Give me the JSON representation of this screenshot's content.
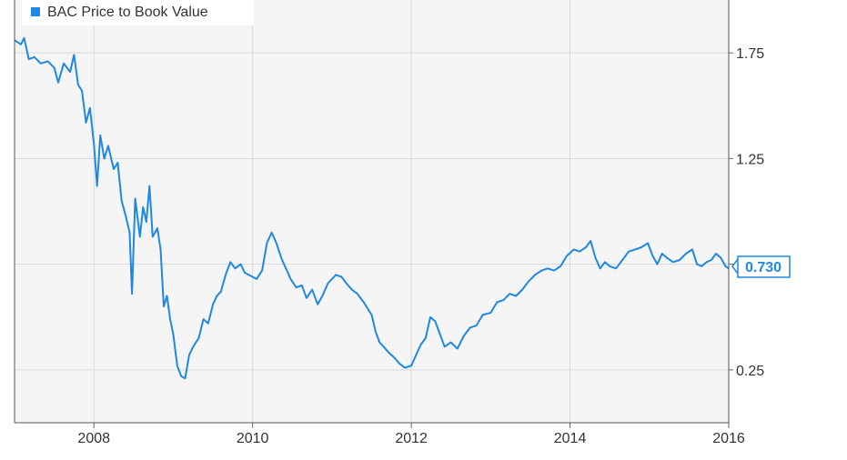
{
  "chart_data": {
    "type": "line",
    "title": "",
    "xlabel": "",
    "ylabel": "",
    "xlim": [
      2007.0,
      2016.0
    ],
    "ylim": [
      0.0,
      2.0
    ],
    "x_ticks": [
      2008,
      2010,
      2012,
      2014,
      2016
    ],
    "x_tick_labels": [
      "2008",
      "2010",
      "2012",
      "2014",
      "2016"
    ],
    "y_ticks": [
      0.25,
      0.75,
      1.25,
      1.75
    ],
    "y_tick_labels": [
      "0.25",
      "0.75",
      "1.25",
      "1.75"
    ],
    "grid": true,
    "legend": "top-left",
    "last_value_label": "0.730",
    "series": [
      {
        "name": "BAC Price to Book Value",
        "color": "#1e88e5",
        "points": [
          [
            2007.0,
            1.81
          ],
          [
            2007.08,
            1.79
          ],
          [
            2007.12,
            1.82
          ],
          [
            2007.18,
            1.72
          ],
          [
            2007.25,
            1.73
          ],
          [
            2007.33,
            1.7
          ],
          [
            2007.42,
            1.71
          ],
          [
            2007.5,
            1.68
          ],
          [
            2007.55,
            1.61
          ],
          [
            2007.62,
            1.7
          ],
          [
            2007.7,
            1.66
          ],
          [
            2007.75,
            1.74
          ],
          [
            2007.8,
            1.6
          ],
          [
            2007.85,
            1.57
          ],
          [
            2007.9,
            1.42
          ],
          [
            2007.95,
            1.49
          ],
          [
            2008.0,
            1.32
          ],
          [
            2008.04,
            1.12
          ],
          [
            2008.08,
            1.36
          ],
          [
            2008.13,
            1.25
          ],
          [
            2008.18,
            1.31
          ],
          [
            2008.25,
            1.2
          ],
          [
            2008.3,
            1.23
          ],
          [
            2008.35,
            1.05
          ],
          [
            2008.4,
            0.98
          ],
          [
            2008.45,
            0.9
          ],
          [
            2008.48,
            0.61
          ],
          [
            2008.52,
            1.06
          ],
          [
            2008.58,
            0.88
          ],
          [
            2008.62,
            1.02
          ],
          [
            2008.66,
            0.95
          ],
          [
            2008.7,
            1.12
          ],
          [
            2008.74,
            0.88
          ],
          [
            2008.8,
            0.92
          ],
          [
            2008.84,
            0.82
          ],
          [
            2008.88,
            0.55
          ],
          [
            2008.92,
            0.6
          ],
          [
            2008.96,
            0.49
          ],
          [
            2009.0,
            0.42
          ],
          [
            2009.05,
            0.27
          ],
          [
            2009.1,
            0.22
          ],
          [
            2009.15,
            0.21
          ],
          [
            2009.2,
            0.32
          ],
          [
            2009.25,
            0.36
          ],
          [
            2009.32,
            0.4
          ],
          [
            2009.38,
            0.49
          ],
          [
            2009.44,
            0.47
          ],
          [
            2009.5,
            0.56
          ],
          [
            2009.55,
            0.6
          ],
          [
            2009.6,
            0.62
          ],
          [
            2009.66,
            0.7
          ],
          [
            2009.72,
            0.76
          ],
          [
            2009.78,
            0.73
          ],
          [
            2009.85,
            0.75
          ],
          [
            2009.9,
            0.71
          ],
          [
            2009.95,
            0.7
          ],
          [
            2010.05,
            0.68
          ],
          [
            2010.12,
            0.72
          ],
          [
            2010.18,
            0.85
          ],
          [
            2010.24,
            0.9
          ],
          [
            2010.3,
            0.85
          ],
          [
            2010.36,
            0.78
          ],
          [
            2010.42,
            0.73
          ],
          [
            2010.48,
            0.68
          ],
          [
            2010.55,
            0.64
          ],
          [
            2010.62,
            0.65
          ],
          [
            2010.68,
            0.59
          ],
          [
            2010.75,
            0.63
          ],
          [
            2010.82,
            0.56
          ],
          [
            2010.88,
            0.6
          ],
          [
            2010.95,
            0.66
          ],
          [
            2011.05,
            0.7
          ],
          [
            2011.12,
            0.69
          ],
          [
            2011.18,
            0.66
          ],
          [
            2011.25,
            0.63
          ],
          [
            2011.32,
            0.61
          ],
          [
            2011.4,
            0.57
          ],
          [
            2011.45,
            0.54
          ],
          [
            2011.5,
            0.51
          ],
          [
            2011.55,
            0.43
          ],
          [
            2011.6,
            0.38
          ],
          [
            2011.65,
            0.36
          ],
          [
            2011.72,
            0.33
          ],
          [
            2011.78,
            0.31
          ],
          [
            2011.85,
            0.28
          ],
          [
            2011.92,
            0.26
          ],
          [
            2012.0,
            0.27
          ],
          [
            2012.06,
            0.32
          ],
          [
            2012.12,
            0.37
          ],
          [
            2012.18,
            0.4
          ],
          [
            2012.24,
            0.5
          ],
          [
            2012.3,
            0.48
          ],
          [
            2012.36,
            0.42
          ],
          [
            2012.42,
            0.36
          ],
          [
            2012.5,
            0.38
          ],
          [
            2012.58,
            0.35
          ],
          [
            2012.66,
            0.41
          ],
          [
            2012.74,
            0.45
          ],
          [
            2012.82,
            0.46
          ],
          [
            2012.9,
            0.51
          ],
          [
            2013.0,
            0.52
          ],
          [
            2013.08,
            0.57
          ],
          [
            2013.16,
            0.58
          ],
          [
            2013.24,
            0.61
          ],
          [
            2013.32,
            0.6
          ],
          [
            2013.4,
            0.63
          ],
          [
            2013.48,
            0.67
          ],
          [
            2013.56,
            0.7
          ],
          [
            2013.64,
            0.72
          ],
          [
            2013.72,
            0.73
          ],
          [
            2013.8,
            0.72
          ],
          [
            2013.88,
            0.74
          ],
          [
            2013.96,
            0.79
          ],
          [
            2014.05,
            0.82
          ],
          [
            2014.12,
            0.81
          ],
          [
            2014.2,
            0.83
          ],
          [
            2014.26,
            0.86
          ],
          [
            2014.32,
            0.78
          ],
          [
            2014.38,
            0.73
          ],
          [
            2014.44,
            0.76
          ],
          [
            2014.5,
            0.74
          ],
          [
            2014.58,
            0.73
          ],
          [
            2014.66,
            0.77
          ],
          [
            2014.74,
            0.81
          ],
          [
            2014.82,
            0.82
          ],
          [
            2014.9,
            0.83
          ],
          [
            2014.98,
            0.85
          ],
          [
            2015.04,
            0.79
          ],
          [
            2015.1,
            0.75
          ],
          [
            2015.16,
            0.8
          ],
          [
            2015.22,
            0.78
          ],
          [
            2015.3,
            0.76
          ],
          [
            2015.38,
            0.77
          ],
          [
            2015.46,
            0.8
          ],
          [
            2015.54,
            0.82
          ],
          [
            2015.6,
            0.75
          ],
          [
            2015.66,
            0.74
          ],
          [
            2015.72,
            0.76
          ],
          [
            2015.78,
            0.77
          ],
          [
            2015.84,
            0.8
          ],
          [
            2015.9,
            0.78
          ],
          [
            2015.96,
            0.74
          ],
          [
            2016.0,
            0.73
          ]
        ]
      }
    ]
  }
}
